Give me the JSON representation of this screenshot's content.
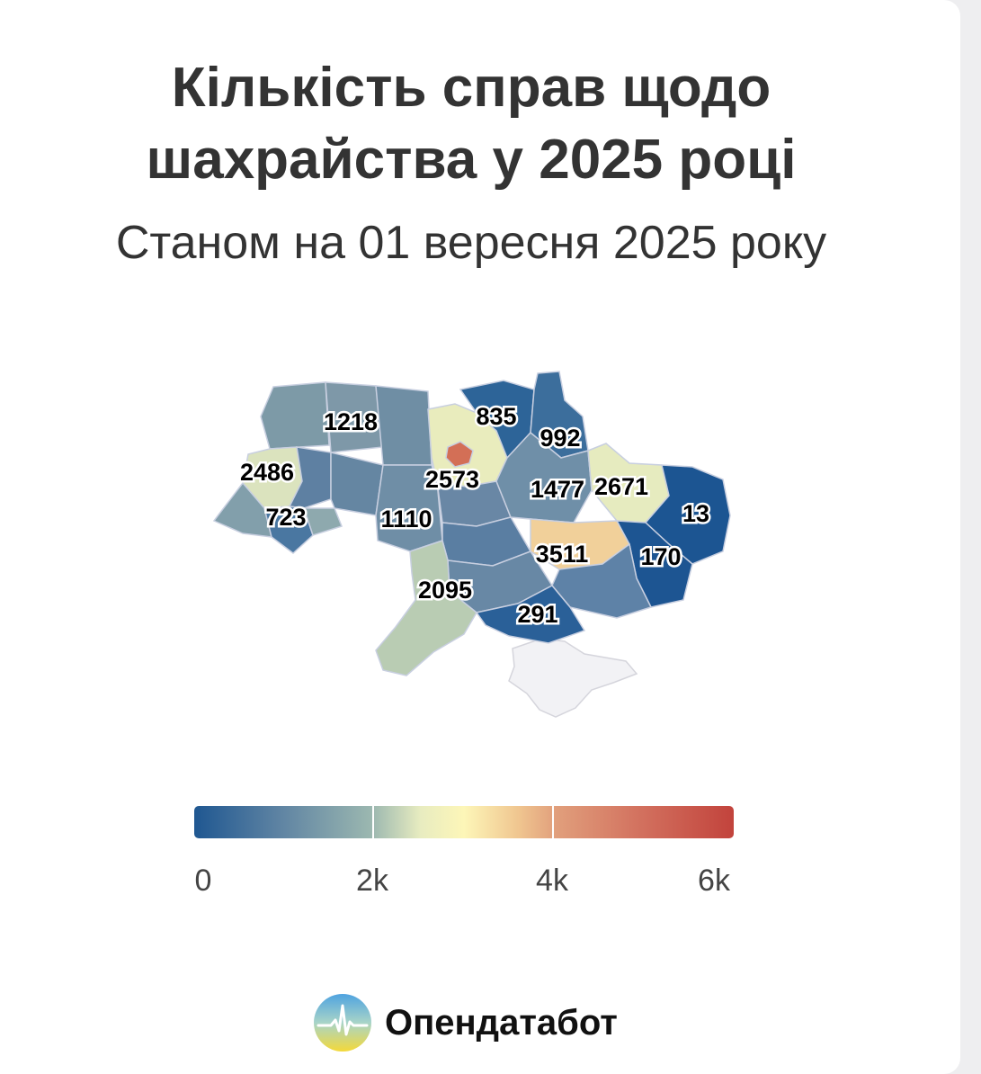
{
  "title": "Кількість справ щодо\nшахрайства у 2025 році",
  "subtitle": "Станом на 01 вересня 2025 року",
  "chart_data": {
    "type": "heatmap",
    "map": "Ukraine by oblast (choropleth)",
    "colorscale": [
      "#1f5791",
      "#9cb8b0",
      "#fdf6b8",
      "#e19f7c",
      "#c2433c"
    ],
    "range": [
      0,
      6000
    ],
    "tick_labels": [
      "0",
      "2k",
      "4k",
      "6k"
    ],
    "values": [
      1218,
      835,
      992,
      2486,
      2573,
      1477,
      2671,
      723,
      1110,
      13,
      3511,
      170,
      2095,
      291
    ]
  },
  "brand": {
    "name": "Опендатабот",
    "logo_icon": "sun-heartbeat-logo-icon"
  }
}
